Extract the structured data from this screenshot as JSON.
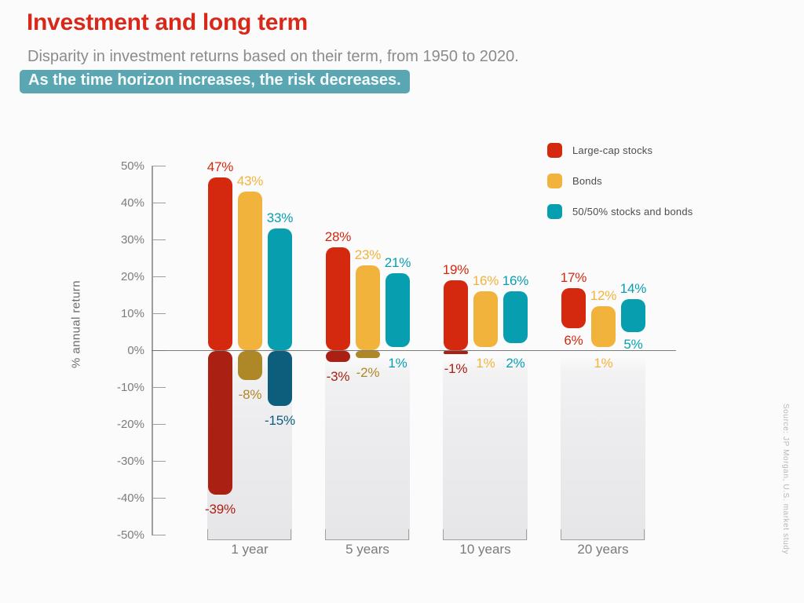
{
  "header": {
    "title": "Investment and long term",
    "subtitle": "Disparity in investment returns based on their term, from 1950 to 2020.",
    "highlight": "As the time horizon increases, the risk decreases.",
    "title_color": "#d8281a",
    "highlight_bg": "#5aa6b2"
  },
  "source_note": "Source: JP Morgan, U.S. market study",
  "chart_data": {
    "type": "bar",
    "subtype": "floating-range-bars",
    "title": "Investment and long term",
    "ylabel": "% annual return",
    "ylim": [
      -50,
      50
    ],
    "grid": false,
    "legend_position": "top-right",
    "y_ticks": [
      "50%",
      "40%",
      "30%",
      "20%",
      "10%",
      "0%",
      "-10%",
      "-20%",
      "-30%",
      "-40%",
      "-50%"
    ],
    "categories": [
      "1 year",
      "5 years",
      "10 years",
      "20 years"
    ],
    "series": [
      {
        "name": "Large-cap stocks",
        "pos_color": "#d4290e",
        "neg_color": "#aa2012",
        "max": [
          47,
          28,
          19,
          17
        ],
        "min": [
          -39,
          -3,
          -1,
          6
        ]
      },
      {
        "name": "Bonds",
        "pos_color": "#f2b33c",
        "neg_color": "#ae8726",
        "max": [
          43,
          23,
          16,
          12
        ],
        "min": [
          -8,
          -2,
          1,
          1
        ]
      },
      {
        "name": "50/50% stocks and bonds",
        "pos_color": "#079fb0",
        "neg_color": "#0c5e7c",
        "max": [
          33,
          21,
          16,
          14
        ],
        "min": [
          -15,
          1,
          2,
          5
        ]
      }
    ],
    "value_label_suffix": "%"
  }
}
